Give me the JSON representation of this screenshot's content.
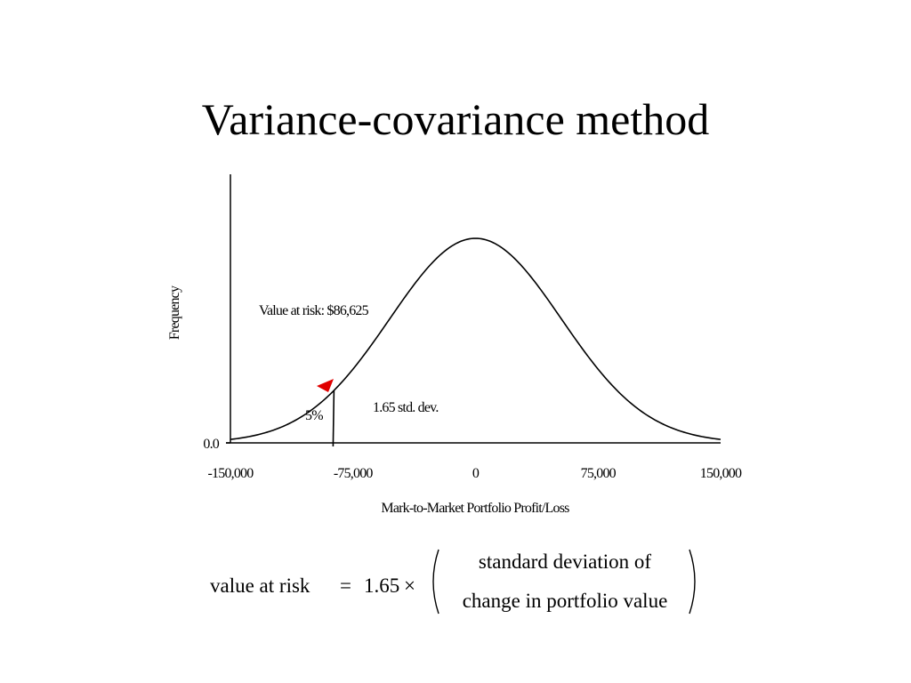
{
  "slide": {
    "title": "Variance-covariance method"
  },
  "chart_data": {
    "type": "line",
    "title": "",
    "xlabel": "Mark-to-Market Portfolio Profit/Loss",
    "ylabel": "Frequency",
    "xlim": [
      -150000,
      150000
    ],
    "ylim": [
      0,
      1
    ],
    "x_ticks": [
      -150000,
      -75000,
      0,
      75000,
      150000
    ],
    "x_tick_labels": [
      "-150,000",
      "-75,000",
      "0",
      "75,000",
      "150,000"
    ],
    "y_tick_labels": [
      "0.0"
    ],
    "series": [
      {
        "curve": "normal",
        "mean": 0,
        "std_dev": 52500,
        "color": "#000000"
      }
    ],
    "var_line_x": -86625,
    "marker_color": "#e00000",
    "annotations": {
      "var_label": "Value at risk: $86,625",
      "std_label": "1.65 std. dev.",
      "tail_label": "5%"
    },
    "grid": false
  },
  "formula": {
    "lhs": "value at risk",
    "equals": "=",
    "coefficient": "1.65",
    "times": "×",
    "numerator": "standard deviation of",
    "denominator": "change in portfolio value"
  }
}
